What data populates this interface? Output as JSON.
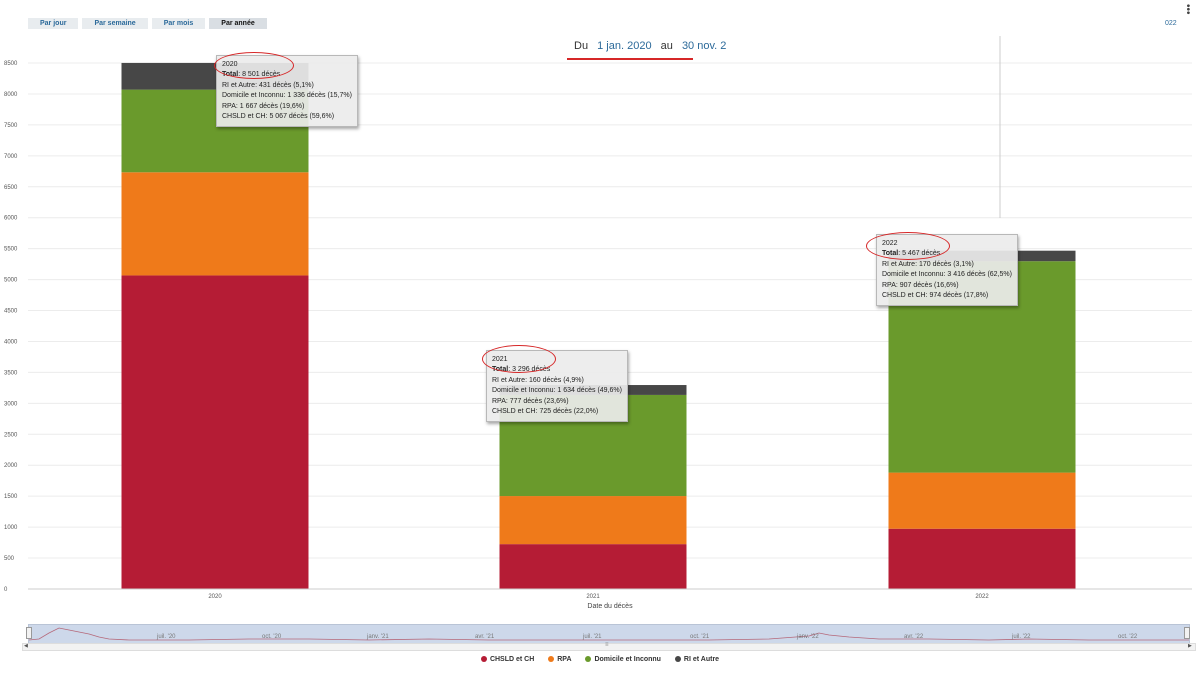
{
  "tabs": [
    {
      "label": "Par jour",
      "active": false
    },
    {
      "label": "Par semaine",
      "active": false
    },
    {
      "label": "Par mois",
      "active": false
    },
    {
      "label": "Par année",
      "active": true
    }
  ],
  "year_right": "022",
  "date_range": {
    "du": "Du",
    "start": "1 jan. 2020",
    "au": "au",
    "end": "30 nov. 2"
  },
  "chart_data": {
    "type": "bar",
    "stacked": true,
    "categories": [
      "2020",
      "2021",
      "2022"
    ],
    "series": [
      {
        "name": "CHSLD et CH",
        "values": [
          5067,
          725,
          974
        ],
        "color": "#b51c35"
      },
      {
        "name": "RPA",
        "values": [
          1667,
          777,
          907
        ],
        "color": "#ef7a1a"
      },
      {
        "name": "Domicile et Inconnu",
        "values": [
          1336,
          1634,
          3416
        ],
        "color": "#6a9a2c"
      },
      {
        "name": "RI et Autre",
        "values": [
          431,
          160,
          170
        ],
        "color": "#474747"
      }
    ],
    "ylim": [
      0,
      8500
    ],
    "yticks": [
      "0",
      "500",
      "1000",
      "1500",
      "2000",
      "2500",
      "3000",
      "3500",
      "4000",
      "4500",
      "5000",
      "5500",
      "6000",
      "6500",
      "7000",
      "7500",
      "8000",
      "8500"
    ],
    "xlabel": "Date du décès",
    "ylabel": "",
    "legend_position": "bottom"
  },
  "tooltips": [
    {
      "year": "2020",
      "total_label": "Total",
      "total_value": ": 8 501 décès",
      "lines": [
        "RI et Autre: 431 décès (5,1%)",
        "Domicile et Inconnu: 1 336 décès (15,7%)",
        "RPA: 1 667 décès (19,6%)",
        "CHSLD et CH: 5 067 décès (59,6%)"
      ]
    },
    {
      "year": "2021",
      "total_label": "Total",
      "total_value": ": 3 296 décès",
      "lines": [
        "RI et Autre: 160 décès (4,9%)",
        "Domicile et Inconnu: 1 634 décès (49,6%)",
        "RPA: 777 décès (23,6%)",
        "CHSLD et CH: 725 décès (22,0%)"
      ]
    },
    {
      "year": "2022",
      "total_label": "Total",
      "total_value": ": 5 467 décès",
      "lines": [
        "RI et Autre: 170 décès (3,1%)",
        "Domicile et Inconnu: 3 416 décès (62,5%)",
        "RPA: 907 décès (16,6%)",
        "CHSLD et CH: 974 décès (17,8%)"
      ]
    }
  ],
  "navigator": {
    "labels": [
      "juil. '20",
      "oct. '20",
      "janv. '21",
      "avr. '21",
      "juil. '21",
      "oct. '21",
      "janv. '22",
      "avr. '22",
      "juil. '22",
      "oct. '22"
    ],
    "scroll_glyph": "≡"
  }
}
